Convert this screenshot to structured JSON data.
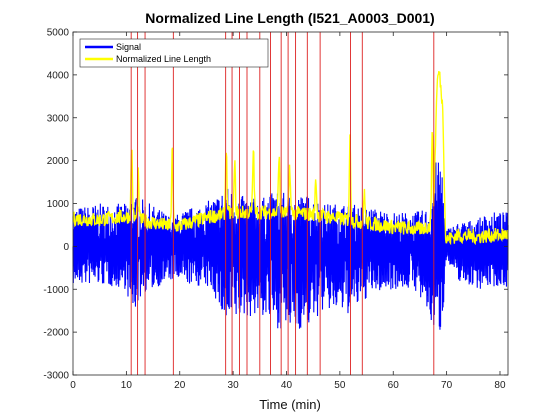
{
  "chart_data": {
    "type": "line",
    "title": "Normalized Line Length (I521_A0003_D001)",
    "xlabel": "Time (min)",
    "ylabel": "",
    "xlim": [
      0,
      81.5
    ],
    "ylim": [
      -3000,
      5000
    ],
    "xticks": [
      0,
      10,
      20,
      30,
      40,
      50,
      60,
      70,
      80
    ],
    "yticks": [
      -3000,
      -2000,
      -1000,
      0,
      1000,
      2000,
      3000,
      4000,
      5000
    ],
    "legend_position": "top-left",
    "series": [
      {
        "name": "Signal",
        "color": "#0000ff",
        "envelope": [
          {
            "x": 0,
            "lo": -900,
            "hi": 900
          },
          {
            "x": 5,
            "lo": -900,
            "hi": 1000
          },
          {
            "x": 10,
            "lo": -1000,
            "hi": 1000
          },
          {
            "x": 11,
            "lo": -1700,
            "hi": 1200
          },
          {
            "x": 13,
            "lo": -1100,
            "hi": 1100
          },
          {
            "x": 18.5,
            "lo": -800,
            "hi": 700
          },
          {
            "x": 22,
            "lo": -900,
            "hi": 900
          },
          {
            "x": 26,
            "lo": -1000,
            "hi": 1100
          },
          {
            "x": 29,
            "lo": -2000,
            "hi": 1400
          },
          {
            "x": 31,
            "lo": -1700,
            "hi": 1200
          },
          {
            "x": 35,
            "lo": -1600,
            "hi": 1100
          },
          {
            "x": 38,
            "lo": -1900,
            "hi": 1300
          },
          {
            "x": 41,
            "lo": -2000,
            "hi": 1200
          },
          {
            "x": 44,
            "lo": -1900,
            "hi": 1200
          },
          {
            "x": 47,
            "lo": -1500,
            "hi": 1000
          },
          {
            "x": 52,
            "lo": -1600,
            "hi": 1000
          },
          {
            "x": 56,
            "lo": -1100,
            "hi": 900
          },
          {
            "x": 60,
            "lo": -1000,
            "hi": 800
          },
          {
            "x": 64,
            "lo": -1000,
            "hi": 800
          },
          {
            "x": 67,
            "lo": -1800,
            "hi": 900
          },
          {
            "x": 67.8,
            "lo": -2000,
            "hi": 2000
          },
          {
            "x": 69.2,
            "lo": -2050,
            "hi": 1950
          },
          {
            "x": 69.8,
            "lo": -300,
            "hi": 400
          },
          {
            "x": 72,
            "lo": -800,
            "hi": 550
          },
          {
            "x": 76,
            "lo": -1000,
            "hi": 650
          },
          {
            "x": 78,
            "lo": -950,
            "hi": 800
          },
          {
            "x": 81.5,
            "lo": -950,
            "hi": 800
          }
        ]
      },
      {
        "name": "Normalized Line Length",
        "color": "#ffff00",
        "baseline": [
          {
            "x": 0,
            "v": 650
          },
          {
            "x": 5,
            "v": 620
          },
          {
            "x": 10,
            "v": 700
          },
          {
            "x": 14,
            "v": 580
          },
          {
            "x": 19,
            "v": 450
          },
          {
            "x": 22,
            "v": 550
          },
          {
            "x": 26,
            "v": 700
          },
          {
            "x": 30,
            "v": 780
          },
          {
            "x": 35,
            "v": 800
          },
          {
            "x": 40,
            "v": 780
          },
          {
            "x": 45,
            "v": 750
          },
          {
            "x": 50,
            "v": 650
          },
          {
            "x": 55,
            "v": 550
          },
          {
            "x": 60,
            "v": 450
          },
          {
            "x": 65,
            "v": 400
          },
          {
            "x": 67.5,
            "v": 500
          },
          {
            "x": 68.2,
            "v": 3800
          },
          {
            "x": 68.6,
            "v": 4100
          },
          {
            "x": 69.3,
            "v": 3200
          },
          {
            "x": 69.8,
            "v": 150
          },
          {
            "x": 72,
            "v": 250
          },
          {
            "x": 76,
            "v": 230
          },
          {
            "x": 81.5,
            "v": 280
          }
        ],
        "peaks": [
          {
            "x": 11,
            "v": 2300
          },
          {
            "x": 12.2,
            "v": 1700
          },
          {
            "x": 18.6,
            "v": 2350
          },
          {
            "x": 28.7,
            "v": 2350
          },
          {
            "x": 30.3,
            "v": 1900
          },
          {
            "x": 33.8,
            "v": 2300
          },
          {
            "x": 38.6,
            "v": 2150
          },
          {
            "x": 40.6,
            "v": 1900
          },
          {
            "x": 45.5,
            "v": 1600
          },
          {
            "x": 51.9,
            "v": 2500
          },
          {
            "x": 54.6,
            "v": 1300
          },
          {
            "x": 67.3,
            "v": 2850
          }
        ]
      }
    ],
    "event_lines": {
      "color": "#dd2222",
      "x": [
        10.9,
        12.1,
        13.5,
        18.8,
        28.6,
        29.8,
        31.2,
        32.6,
        35.0,
        37.0,
        39.0,
        40.3,
        41.7,
        43.9,
        46.3,
        52.0,
        54.2,
        67.6
      ]
    }
  }
}
